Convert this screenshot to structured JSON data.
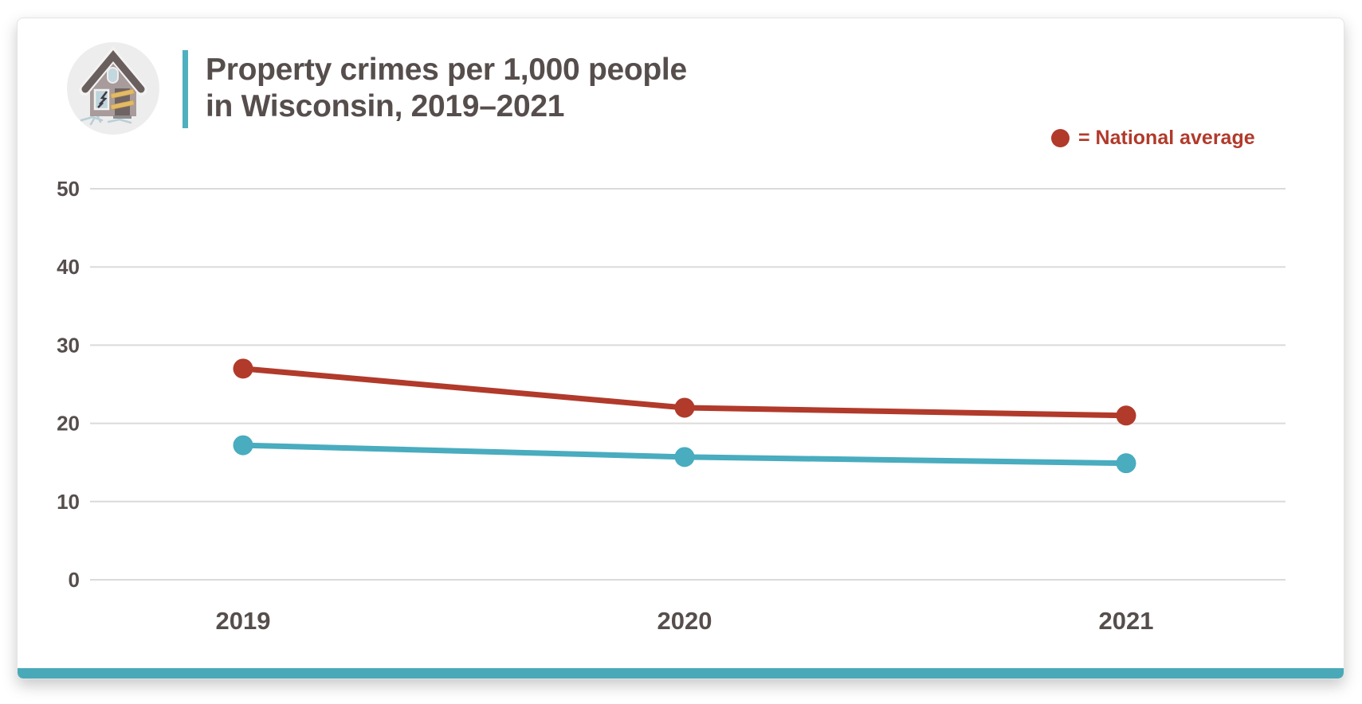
{
  "header": {
    "title_line1": "Property crimes per 1,000 people",
    "title_line2": "in Wisconsin, 2019–2021",
    "icon": "vandalized-house-icon"
  },
  "legend": {
    "label": "= National average",
    "color": "#b13a2b"
  },
  "colors": {
    "accent_teal": "#4aa9b8",
    "national_red": "#b13a2b",
    "wisconsin_teal": "#49acbf",
    "text_dark": "#564e4c",
    "gridline": "#dcdad9"
  },
  "chart_data": {
    "type": "line",
    "title": "Property crimes per 1,000 people in Wisconsin, 2019–2021",
    "categories": [
      "2019",
      "2020",
      "2021"
    ],
    "series": [
      {
        "name": "National average",
        "color": "#b13a2b",
        "values": [
          27,
          22,
          21
        ]
      },
      {
        "name": "Wisconsin",
        "color": "#49acbf",
        "values": [
          17.2,
          15.7,
          14.9
        ]
      }
    ],
    "xlabel": "",
    "ylabel": "",
    "ylim": [
      0,
      50
    ],
    "yticks": [
      0,
      10,
      20,
      30,
      40,
      50
    ],
    "grid": "horizontal",
    "legend_position": "top-right",
    "legend_entries": [
      "= National average"
    ]
  }
}
